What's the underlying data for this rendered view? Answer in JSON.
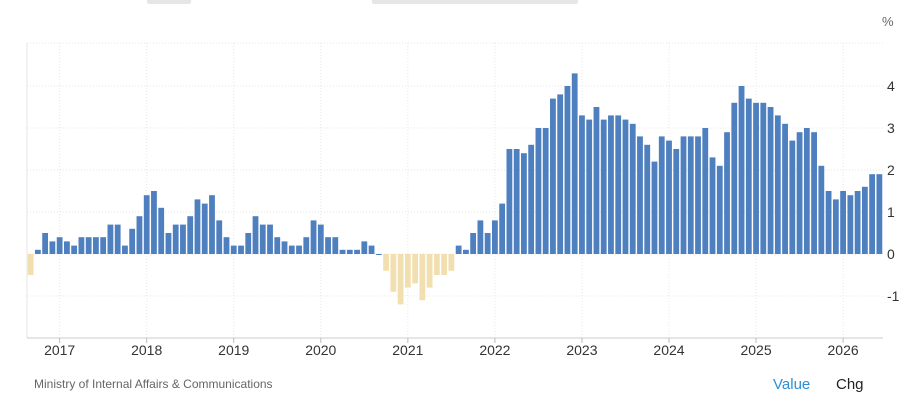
{
  "footer": {
    "source": "Ministry of Internal Affairs & Communications",
    "tabs": {
      "value": "Value",
      "chg": "Chg"
    }
  },
  "colors": {
    "positive": "#4e7fbf",
    "negative": "#f2dfb0",
    "accent": "#2b8fd6"
  },
  "chart_data": {
    "type": "bar",
    "unit": "%",
    "x_start": "2016-09",
    "x_tick_labels": [
      "2017",
      "2018",
      "2019",
      "2020",
      "2021",
      "2022",
      "2023",
      "2024",
      "2025",
      "2026"
    ],
    "y_ticks": [
      4,
      3,
      2,
      1,
      0,
      -1
    ],
    "ylim": [
      -1.9,
      5.0
    ],
    "grid": true,
    "values": [
      -0.5,
      0.1,
      0.5,
      0.3,
      0.4,
      0.3,
      0.2,
      0.4,
      0.4,
      0.4,
      0.4,
      0.7,
      0.7,
      0.2,
      0.6,
      0.9,
      1.4,
      1.5,
      1.1,
      0.5,
      0.7,
      0.7,
      0.9,
      1.3,
      1.2,
      1.4,
      0.8,
      0.4,
      0.2,
      0.2,
      0.5,
      0.9,
      0.7,
      0.7,
      0.4,
      0.3,
      0.2,
      0.2,
      0.4,
      0.8,
      0.7,
      0.4,
      0.4,
      0.1,
      0.1,
      0.1,
      0.3,
      0.2,
      0.0,
      -0.4,
      -0.9,
      -1.2,
      -0.8,
      -0.7,
      -1.1,
      -0.8,
      -0.5,
      -0.5,
      -0.4,
      0.2,
      0.1,
      0.5,
      0.8,
      0.5,
      0.8,
      1.2,
      2.5,
      2.5,
      2.4,
      2.6,
      3.0,
      3.0,
      3.7,
      3.8,
      4.0,
      4.3,
      3.3,
      3.2,
      3.5,
      3.2,
      3.3,
      3.3,
      3.2,
      3.1,
      2.8,
      2.6,
      2.2,
      2.8,
      2.7,
      2.5,
      2.8,
      2.8,
      2.8,
      3.0,
      2.3,
      2.1,
      2.9,
      3.6,
      4.0,
      3.7,
      3.6,
      3.6,
      3.5,
      3.3,
      3.1,
      2.7,
      2.9,
      3.0,
      2.9,
      2.1,
      1.5,
      1.3,
      1.5,
      1.4,
      1.5,
      1.6,
      1.9,
      1.9
    ]
  }
}
